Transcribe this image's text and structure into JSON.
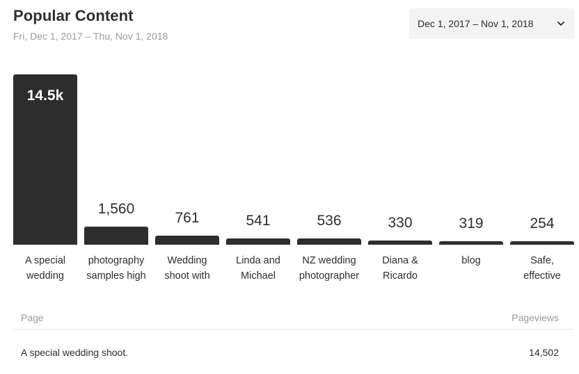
{
  "header": {
    "title": "Popular Content",
    "subtitle": "Fri, Dec 1, 2017 – Thu, Nov 1, 2018"
  },
  "range_select": {
    "selected": "Dec 1, 2017 – Nov 1, 2018",
    "icon": "chevron-down-icon"
  },
  "chart_data": {
    "type": "bar",
    "categories": [
      "A special wedding",
      "photography samples high",
      "Wedding shoot with",
      "Linda and Michael",
      "NZ wedding photographer",
      "Diana & Ricardo",
      "blog",
      "Safe, effective"
    ],
    "values": [
      14502,
      1560,
      761,
      541,
      536,
      330,
      319,
      254
    ],
    "value_labels": [
      "14.5k",
      "1,560",
      "761",
      "541",
      "536",
      "330",
      "319",
      "254"
    ],
    "label_lines": [
      [
        "A special",
        "wedding"
      ],
      [
        "photography",
        "samples high"
      ],
      [
        "Wedding",
        "shoot with"
      ],
      [
        "Linda and",
        "Michael"
      ],
      [
        "NZ wedding",
        "photographer"
      ],
      [
        "Diana &",
        "Ricardo"
      ],
      [
        "blog"
      ],
      [
        "Safe,",
        "effective"
      ]
    ],
    "title": "",
    "xlabel": "",
    "ylabel": "",
    "ylim": [
      0,
      14502
    ],
    "grid": false,
    "bar_color": "#2d2d2d"
  },
  "table": {
    "columns": [
      "Page",
      "Pageviews"
    ],
    "rows": [
      {
        "page": "A special wedding shoot.",
        "pageviews": "14,502"
      }
    ]
  }
}
